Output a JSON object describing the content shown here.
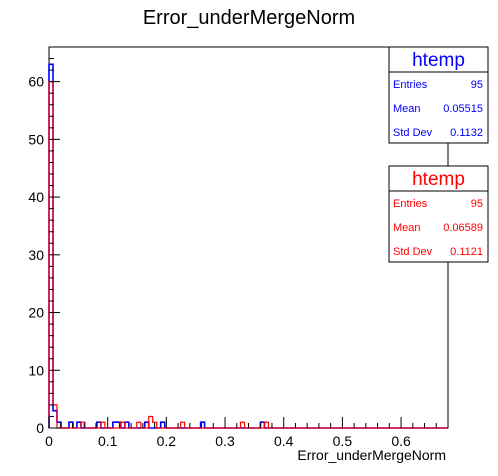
{
  "chart_data": {
    "type": "histogram",
    "title": "Error_underMergeNorm",
    "xlabel": "Error_underMergeNorm",
    "ylabel": "",
    "xlim": [
      0,
      0.68
    ],
    "ylim": [
      0,
      66
    ],
    "bin_width": 0.0068,
    "x_ticks": [
      0,
      0.1,
      0.2,
      0.3,
      0.4,
      0.5,
      0.6
    ],
    "x_tick_labels": [
      "0",
      "0.1",
      "0.2",
      "0.3",
      "0.4",
      "0.5",
      "0.6"
    ],
    "y_ticks": [
      0,
      10,
      20,
      30,
      40,
      50,
      60
    ],
    "grid": false,
    "series": [
      {
        "color": "#0000ff",
        "counts": [
          63,
          3,
          1,
          0,
          0,
          1,
          0,
          1,
          0,
          0,
          0,
          0,
          1,
          0,
          0,
          0,
          1,
          1,
          0,
          1,
          0,
          0,
          0,
          0,
          1,
          0,
          0,
          0,
          1,
          0,
          0,
          0,
          0,
          0,
          0,
          0,
          0,
          0,
          1,
          0,
          0,
          0,
          0,
          0,
          0,
          0,
          0,
          0,
          0,
          0,
          0,
          0,
          0,
          1,
          0,
          0,
          0,
          0,
          0,
          0,
          0,
          0,
          0,
          0,
          0,
          0,
          0,
          0,
          0,
          0,
          0,
          0,
          0,
          0,
          0,
          0,
          0,
          0,
          0,
          0,
          0,
          0,
          0,
          0,
          0,
          0,
          0,
          0,
          0,
          0,
          0,
          0,
          0,
          0,
          0,
          0,
          0,
          0,
          0,
          0
        ]
      },
      {
        "color": "#ff0000",
        "counts": [
          60,
          4,
          0,
          0,
          0,
          0,
          0,
          0,
          1,
          0,
          0,
          0,
          0,
          1,
          0,
          0,
          0,
          0,
          1,
          0,
          0,
          0,
          1,
          0,
          0,
          2,
          1,
          0,
          0,
          0,
          0,
          0,
          0,
          1,
          0,
          0,
          0,
          0,
          0,
          0,
          0,
          0,
          0,
          0,
          0,
          0,
          0,
          0,
          1,
          0,
          0,
          0,
          0,
          0,
          1,
          0,
          0,
          0,
          0,
          0,
          0,
          0,
          0,
          0,
          0,
          0,
          0,
          0,
          0,
          0,
          0,
          0,
          0,
          0,
          0,
          0,
          0,
          0,
          0,
          0,
          0,
          0,
          0,
          0,
          0,
          0,
          0,
          0,
          0,
          0,
          0,
          0,
          0,
          0,
          0,
          0,
          0,
          0,
          0,
          0
        ]
      }
    ],
    "stats_boxes": [
      {
        "title": "htemp",
        "color": "#0000ff",
        "rows": [
          {
            "label": "Entries",
            "value": "95"
          },
          {
            "label": "Mean",
            "value": "0.05515"
          },
          {
            "label": "Std Dev",
            "value": "0.1132"
          }
        ]
      },
      {
        "title": "htemp",
        "color": "#ff0000",
        "rows": [
          {
            "label": "Entries",
            "value": "95"
          },
          {
            "label": "Mean",
            "value": "0.06589"
          },
          {
            "label": "Std Dev",
            "value": "0.1121"
          }
        ]
      }
    ]
  }
}
